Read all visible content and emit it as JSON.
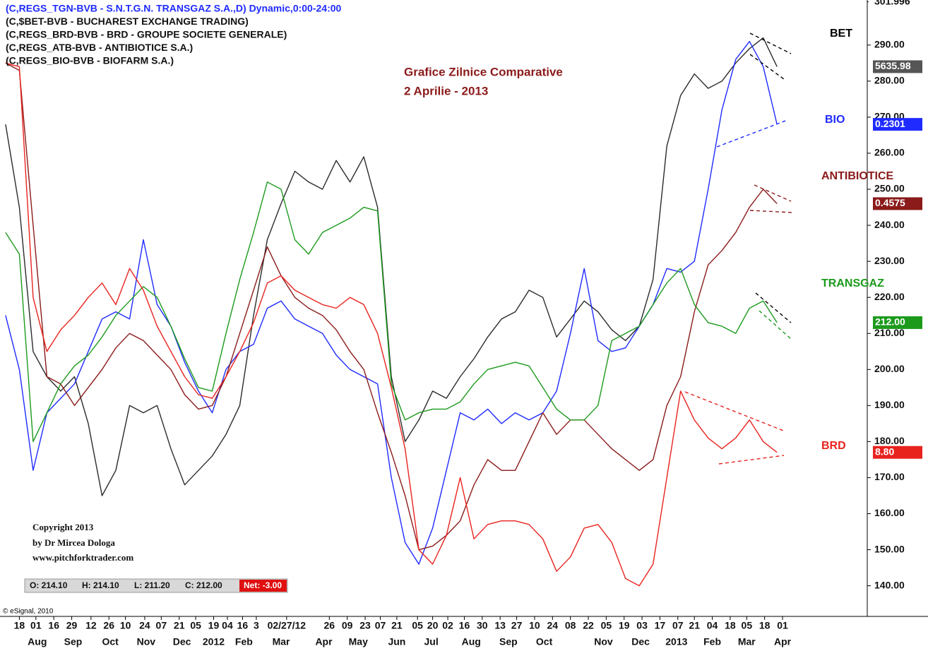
{
  "chart_data": {
    "type": "line",
    "header_lines": [
      "(C,REGS_TGN-BVB - S.N.T.G.N. TRANSGAZ S.A.,D) Dynamic,0:00-24:00",
      "(C,$BET-BVB - BUCHAREST EXCHANGE TRADING)",
      "(C,REGS_BRD-BVB - BRD - GROUPE SOCIETE GENERALE)",
      "(C,REGS_ATB-BVB - ANTIBIOTICE S.A.)",
      "(C,REGS_BIO-BVB - BIOFARM S.A.)"
    ],
    "title": "Grafice Zilnice Comparative",
    "subtitle": "2 Aprilie -  2013",
    "copyright": [
      "Copyright 2013",
      "by Dr Mircea Dologa",
      "www.pitchforktrader.com"
    ],
    "ohlc": [
      "O: 214.10",
      "H: 214.10",
      "L: 211.20",
      "C: 212.00",
      "Net: -3.00"
    ],
    "source": "© eSignal, 2010",
    "ylim": [
      131.5,
      302.5
    ],
    "yticks": [
      {
        "value": 140,
        "label": "140.00"
      },
      {
        "value": 150,
        "label": "150.00"
      },
      {
        "value": 160,
        "label": "160.00"
      },
      {
        "value": 170,
        "label": "170.00"
      },
      {
        "value": 180,
        "label": "180.00"
      },
      {
        "value": 190,
        "label": "190.00"
      },
      {
        "value": 200,
        "label": "200.00"
      },
      {
        "value": 210,
        "label": "210.00"
      },
      {
        "value": 220,
        "label": "220.00"
      },
      {
        "value": 230,
        "label": "230.00"
      },
      {
        "value": 240,
        "label": "240.00"
      },
      {
        "value": 250,
        "label": "250.00"
      },
      {
        "value": 260,
        "label": "260.00"
      },
      {
        "value": 270,
        "label": "270.00"
      },
      {
        "value": 280,
        "label": "280.00"
      },
      {
        "value": 290,
        "label": "290.00"
      },
      301.996
    ],
    "xlim": [
      -0.15,
      62.55
    ],
    "xticks": [
      {
        "value": 1.0,
        "label": "18"
      },
      {
        "value": 2.2,
        "label": "01"
      },
      {
        "value": 3.5,
        "label": "16"
      },
      {
        "value": 4.8,
        "label": "29"
      },
      {
        "value": 6.2,
        "label": "12"
      },
      {
        "value": 7.5,
        "label": "26"
      },
      {
        "value": 8.7,
        "label": "10"
      },
      {
        "value": 10.1,
        "label": "24"
      },
      {
        "value": 11.3,
        "label": "07"
      },
      {
        "value": 12.6,
        "label": "21"
      },
      {
        "value": 13.8,
        "label": "05"
      },
      {
        "value": 15.1,
        "label": "19"
      },
      {
        "value": 16.1,
        "label": "04"
      },
      {
        "value": 17.2,
        "label": "16"
      },
      {
        "value": 18.2,
        "label": "3"
      },
      {
        "value": 20.4,
        "label": "02/27/12"
      },
      {
        "value": 23.5,
        "label": "26"
      },
      {
        "value": 24.8,
        "label": "09"
      },
      {
        "value": 26.1,
        "label": "23"
      },
      {
        "value": 27.2,
        "label": "07"
      },
      {
        "value": 28.4,
        "label": "21"
      },
      {
        "value": 29.9,
        "label": "05"
      },
      {
        "value": 31.0,
        "label": "20"
      },
      {
        "value": 32.1,
        "label": "02"
      },
      {
        "value": 33.3,
        "label": "16"
      },
      {
        "value": 34.6,
        "label": "30"
      },
      {
        "value": 35.9,
        "label": "13"
      },
      {
        "value": 37.1,
        "label": "27"
      },
      {
        "value": 38.4,
        "label": "10"
      },
      {
        "value": 39.7,
        "label": "24"
      },
      {
        "value": 41.0,
        "label": "08"
      },
      {
        "value": 42.3,
        "label": "22"
      },
      {
        "value": 43.6,
        "label": "05"
      },
      {
        "value": 44.9,
        "label": "19"
      },
      {
        "value": 46.2,
        "label": "03"
      },
      {
        "value": 47.5,
        "label": "17"
      },
      {
        "value": 48.8,
        "label": "07"
      },
      {
        "value": 50.0,
        "label": "21"
      },
      {
        "value": 51.3,
        "label": "04"
      },
      {
        "value": 52.6,
        "label": "18"
      },
      {
        "value": 53.8,
        "label": "05"
      },
      {
        "value": 55.1,
        "label": "18"
      },
      {
        "value": 56.4,
        "label": "01"
      }
    ],
    "month_ticks": [
      {
        "value": 2.3,
        "label": "Aug"
      },
      {
        "value": 4.9,
        "label": "Sep"
      },
      {
        "value": 7.6,
        "label": "Oct"
      },
      {
        "value": 10.2,
        "label": "Nov"
      },
      {
        "value": 12.8,
        "label": "Dec"
      },
      {
        "value": 15.1,
        "label": "2012"
      },
      {
        "value": 17.3,
        "label": "Feb"
      },
      {
        "value": 20.0,
        "label": "Mar"
      },
      {
        "value": 23.1,
        "label": "Apr"
      },
      {
        "value": 25.6,
        "label": "May"
      },
      {
        "value": 28.4,
        "label": "Jun"
      },
      {
        "value": 30.9,
        "label": "Jul"
      },
      {
        "value": 33.8,
        "label": "Aug"
      },
      {
        "value": 36.5,
        "label": "Sep"
      },
      {
        "value": 39.1,
        "label": "Oct"
      },
      {
        "value": 43.4,
        "label": "Nov"
      },
      {
        "value": 46.1,
        "label": "Dec"
      },
      {
        "value": 48.7,
        "label": "2013"
      },
      {
        "value": 51.3,
        "label": "Feb"
      },
      {
        "value": 53.8,
        "label": "Mar"
      },
      {
        "value": 56.4,
        "label": "Apr"
      }
    ],
    "series": [
      {
        "name": "BET",
        "color": "#2b2b2b",
        "last_label": "5635.98",
        "label_color": "#000000",
        "box_color": "#555555",
        "values": [
          268,
          245,
          205,
          198,
          194,
          198,
          185,
          165,
          172,
          190,
          188,
          190,
          178,
          168,
          172,
          176,
          182,
          190,
          215,
          236,
          246,
          255,
          252,
          250,
          258,
          252,
          259,
          245,
          198,
          180,
          186,
          194,
          192,
          198,
          203,
          209,
          214,
          216,
          222,
          220,
          209,
          214,
          219,
          216,
          211,
          208,
          212,
          225,
          262,
          276,
          282,
          278,
          280,
          285,
          289,
          292,
          284
        ]
      },
      {
        "name": "BIO",
        "color": "#1f2bff",
        "last_label": "0.2301",
        "label_color": "#1f2bff",
        "box_color": "#1f2bff",
        "values": [
          215,
          200,
          172,
          188,
          192,
          196,
          205,
          214,
          216,
          214,
          236,
          218,
          212,
          202,
          194,
          188,
          200,
          205,
          207,
          217,
          219,
          214,
          212,
          210,
          204,
          200,
          198,
          196,
          170,
          152,
          146,
          156,
          172,
          188,
          186,
          189,
          185,
          188,
          186,
          188,
          194,
          210,
          228,
          208,
          205,
          206,
          212,
          218,
          228,
          227,
          230,
          250,
          272,
          286,
          291,
          284,
          268
        ]
      },
      {
        "name": "ANTIBIOTICE",
        "color": "#8b1a1a",
        "last_label": "0.4575",
        "label_color": "#8b1a1a",
        "box_color": "#8b1a1a",
        "values": [
          285,
          283,
          240,
          198,
          196,
          190,
          195,
          200,
          206,
          210,
          208,
          204,
          200,
          193,
          189,
          190,
          198,
          210,
          222,
          234,
          226,
          220,
          217,
          215,
          211,
          205,
          200,
          188,
          177,
          165,
          150,
          151,
          154,
          158,
          168,
          175,
          172,
          172,
          180,
          188,
          182,
          186,
          186,
          182,
          178,
          175,
          172,
          175,
          190,
          198,
          216,
          229,
          233,
          238,
          245,
          250,
          246
        ]
      },
      {
        "name": "TRANSGAZ",
        "color": "#1c9a1c",
        "last_label": "212.00",
        "label_color": "#1c9a1c",
        "box_color": "#1c9a1c",
        "values": [
          238,
          232,
          180,
          188,
          196,
          201,
          204,
          209,
          215,
          219,
          223,
          220,
          212,
          203,
          195,
          194,
          210,
          225,
          238,
          252,
          250,
          236,
          232,
          238,
          240,
          242,
          245,
          244,
          196,
          186,
          188,
          189,
          189,
          191,
          196,
          200,
          201,
          202,
          201,
          195,
          189,
          186,
          186,
          190,
          208,
          210,
          212,
          218,
          224,
          228,
          218,
          213,
          212,
          210,
          217,
          219,
          213
        ]
      },
      {
        "name": "BRD",
        "color": "#e8231e",
        "last_label": "8.80",
        "label_color": "#e8231e",
        "box_color": "#e8231e",
        "values": [
          285,
          284,
          220,
          205,
          211,
          215,
          220,
          224,
          218,
          228,
          222,
          212,
          205,
          198,
          193,
          192,
          198,
          205,
          213,
          224,
          226,
          222,
          220,
          218,
          217,
          220,
          218,
          210,
          195,
          178,
          150,
          146,
          154,
          170,
          153,
          157,
          158,
          158,
          157,
          153,
          144,
          148,
          156,
          157,
          152,
          142,
          140,
          146,
          170,
          194,
          186,
          181,
          178,
          181,
          186,
          180,
          177
        ]
      }
    ]
  }
}
